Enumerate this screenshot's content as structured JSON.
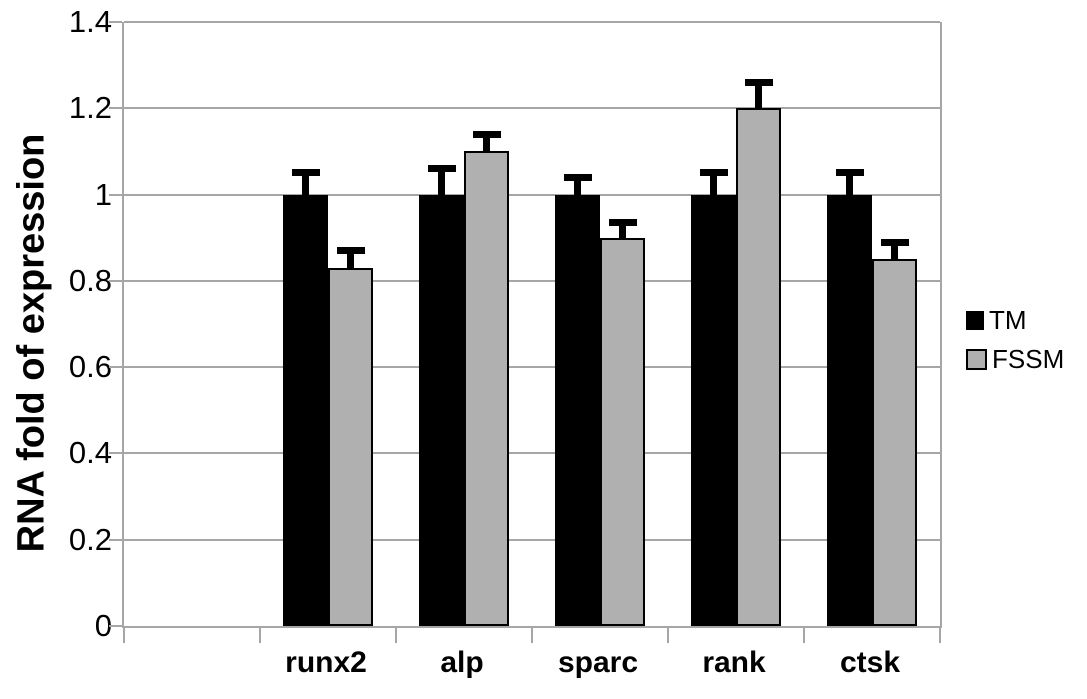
{
  "chart_data": {
    "type": "bar",
    "title": "",
    "xlabel": "",
    "ylabel": "RNA fold of expression",
    "categories": [
      "runx2",
      "alp",
      "sparc",
      "rank",
      "ctsk"
    ],
    "series": [
      {
        "name": "TM",
        "color": "#000000",
        "values": [
          1.0,
          1.0,
          1.0,
          1.0,
          1.0
        ],
        "errors": [
          0.05,
          0.06,
          0.04,
          0.05,
          0.05
        ]
      },
      {
        "name": "FSSM",
        "color": "#b0b0b0",
        "values": [
          0.83,
          1.1,
          0.9,
          1.2,
          0.85
        ],
        "errors": [
          0.04,
          0.04,
          0.035,
          0.06,
          0.04
        ]
      }
    ],
    "ylim": [
      0,
      1.4
    ],
    "ytick_step": 0.2,
    "ytick_labels": [
      "0",
      "0.2",
      "0.4",
      "0.6",
      "0.8",
      "1",
      "1.2",
      "1.4"
    ],
    "grid": true,
    "error_bars": true,
    "legend_position": "right",
    "leading_empty_slots": 1,
    "gridline_color": "#a6a6a6",
    "axis_color": "#a6a6a6"
  }
}
